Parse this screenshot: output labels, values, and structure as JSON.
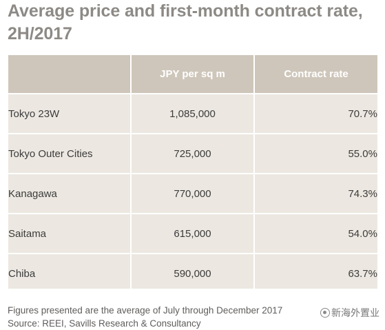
{
  "title": "Average price and first-month contract rate, 2H/2017",
  "chart_data": {
    "type": "table",
    "title": "Average price and first-month contract rate, 2H/2017",
    "columns": [
      "",
      "JPY per sq m",
      "Contract rate"
    ],
    "rows": [
      {
        "region": "Tokyo 23W",
        "price": "1,085,000",
        "rate": "70.7%"
      },
      {
        "region": "Tokyo Outer Cities",
        "price": "725,000",
        "rate": "55.0%"
      },
      {
        "region": "Kanagawa",
        "price": "770,000",
        "rate": "74.3%"
      },
      {
        "region": "Saitama",
        "price": "615,000",
        "rate": "54.0%"
      },
      {
        "region": "Chiba",
        "price": "590,000",
        "rate": "63.7%"
      }
    ]
  },
  "footnote": {
    "line1": "Figures presented are the average of July through December 2017",
    "line2": "Source: REEI, Savills Research & Consultancy"
  },
  "watermark": {
    "text": "新海外置业",
    "icon": "wechat-logo-icon"
  },
  "colors": {
    "title": "#8d8a86",
    "header_bg": "#cec6ba",
    "body_bg": "#ece8e1",
    "divider": "#ffffff"
  }
}
